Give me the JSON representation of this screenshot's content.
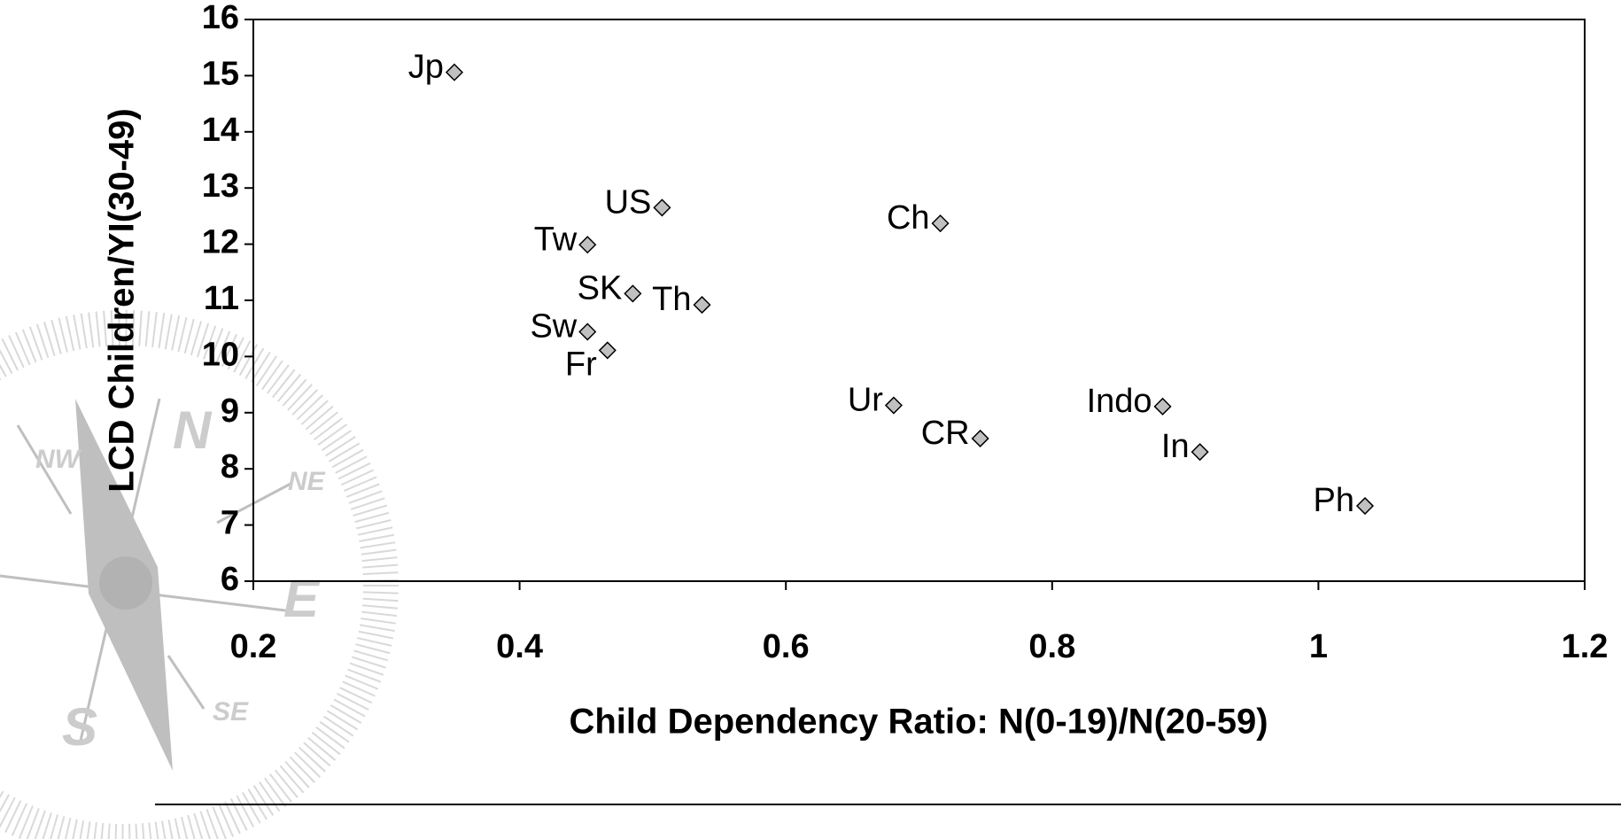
{
  "chart_data": {
    "type": "scatter",
    "xlabel": "Child Dependency Ratio: N(0-19)/N(20-59)",
    "ylabel": "LCD Children/YI(30-49)",
    "labels": [
      "Jp",
      "US",
      "Tw",
      "Ch",
      "SK",
      "Th",
      "Sw",
      "Fr",
      "Ur",
      "CR",
      "Indo",
      "In",
      "Ph"
    ],
    "x": [
      0.351,
      0.507,
      0.451,
      0.716,
      0.485,
      0.537,
      0.451,
      0.466,
      0.681,
      0.746,
      0.883,
      0.911,
      1.035
    ],
    "values": [
      15.06,
      12.65,
      11.99,
      12.37,
      11.12,
      10.92,
      10.44,
      10.11,
      9.13,
      8.54,
      9.11,
      8.3,
      7.34
    ],
    "color": "#c0c0c0",
    "xlim": [
      0.2,
      1.2
    ],
    "xticks": [
      0.2,
      0.4,
      0.6,
      0.8,
      1,
      1.2
    ],
    "ylim": [
      6,
      16
    ],
    "yticks": [
      6,
      7,
      8,
      9,
      10,
      11,
      12,
      13,
      14,
      15,
      16
    ],
    "compass_labels": [
      "N",
      "S",
      "E",
      "NE",
      "NW",
      "SE"
    ]
  }
}
